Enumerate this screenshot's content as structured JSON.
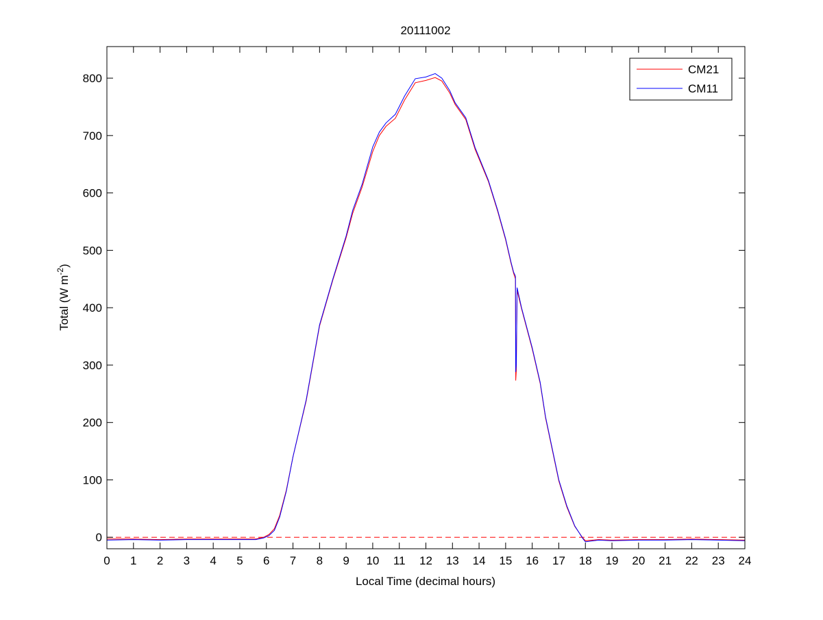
{
  "chart_data": {
    "type": "line",
    "title": "20111002",
    "xlabel": "Local Time (decimal hours)",
    "ylabel": "Total (W m^-2)",
    "xlim": [
      0,
      24
    ],
    "ylim": [
      -20,
      855
    ],
    "xticks": [
      0,
      1,
      2,
      3,
      4,
      5,
      6,
      7,
      8,
      9,
      10,
      11,
      12,
      13,
      14,
      15,
      16,
      17,
      18,
      19,
      20,
      21,
      22,
      23,
      24
    ],
    "yticks": [
      0,
      100,
      200,
      300,
      400,
      500,
      600,
      700,
      800
    ],
    "grid": false,
    "legend_position": "top-right",
    "reference_line": {
      "y": 0,
      "style": "dashed",
      "color": "#ff0000"
    },
    "series": [
      {
        "name": "CM21",
        "color": "#ff0000",
        "x": [
          0,
          1,
          2,
          3,
          4,
          5,
          5.6,
          5.9,
          6.1,
          6.3,
          6.5,
          6.75,
          7,
          7.5,
          8,
          8.5,
          9,
          9.25,
          9.6,
          10,
          10.25,
          10.5,
          10.85,
          11.2,
          11.6,
          12,
          12.35,
          12.6,
          12.9,
          13.1,
          13.5,
          13.85,
          14.35,
          14.7,
          15,
          15.2,
          15.3,
          15.37,
          15.38,
          15.4,
          15.43,
          15.6,
          16,
          16.3,
          16.5,
          17,
          17.3,
          17.6,
          17.9,
          18,
          18.5,
          19,
          20,
          21,
          22,
          23,
          24
        ],
        "y": [
          -3,
          -3,
          -4,
          -3,
          -3,
          -3,
          -3,
          0,
          5,
          15,
          38,
          82,
          140,
          238,
          368,
          448,
          522,
          565,
          610,
          672,
          700,
          716,
          730,
          762,
          792,
          796,
          801,
          795,
          774,
          754,
          728,
          676,
          620,
          568,
          518,
          478,
          460,
          450,
          273,
          290,
          430,
          398,
          328,
          268,
          208,
          98,
          53,
          19,
          -1,
          -6,
          -4,
          -5,
          -4,
          -4,
          -3,
          -4,
          -5
        ]
      },
      {
        "name": "CM11",
        "color": "#0000ff",
        "x": [
          0,
          1,
          2,
          3,
          4,
          5,
          5.6,
          5.9,
          6.1,
          6.3,
          6.5,
          6.75,
          7,
          7.5,
          8,
          8.5,
          9,
          9.25,
          9.6,
          10,
          10.25,
          10.5,
          10.85,
          11.2,
          11.6,
          12,
          12.35,
          12.6,
          12.9,
          13.1,
          13.5,
          13.85,
          14.35,
          14.7,
          15,
          15.2,
          15.3,
          15.37,
          15.38,
          15.4,
          15.43,
          15.6,
          16,
          16.3,
          16.5,
          17,
          17.3,
          17.6,
          17.9,
          18,
          18.5,
          19,
          20,
          21,
          22,
          23,
          24
        ],
        "y": [
          -5,
          -4,
          -5,
          -4,
          -4,
          -4,
          -4,
          -1,
          3,
          12,
          35,
          80,
          140,
          240,
          370,
          450,
          525,
          570,
          615,
          680,
          706,
          722,
          737,
          769,
          799,
          802,
          808,
          800,
          778,
          757,
          731,
          679,
          622,
          570,
          520,
          480,
          462,
          455,
          288,
          300,
          435,
          400,
          330,
          270,
          210,
          100,
          55,
          20,
          -2,
          -8,
          -5,
          -6,
          -5,
          -5,
          -4,
          -5,
          -6
        ]
      }
    ]
  }
}
